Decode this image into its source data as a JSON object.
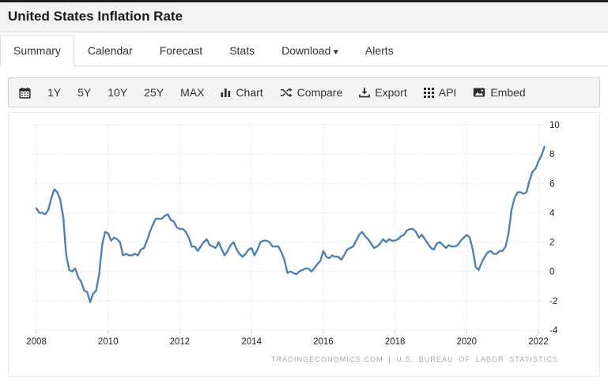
{
  "page": {
    "title": "United States Inflation Rate"
  },
  "tabs": {
    "items": [
      {
        "label": "Summary",
        "active": true
      },
      {
        "label": "Calendar",
        "active": false
      },
      {
        "label": "Forecast",
        "active": false
      },
      {
        "label": "Stats",
        "active": false
      },
      {
        "label": "Download",
        "active": false,
        "has_caret": true
      },
      {
        "label": "Alerts",
        "active": false
      }
    ]
  },
  "icons": {
    "caret_down": "▾"
  },
  "toolbar": {
    "ranges": [
      {
        "label": "1Y"
      },
      {
        "label": "5Y"
      },
      {
        "label": "10Y"
      },
      {
        "label": "25Y"
      },
      {
        "label": "MAX"
      }
    ],
    "actions": [
      {
        "label": "Chart"
      },
      {
        "label": "Compare"
      },
      {
        "label": "Export"
      },
      {
        "label": "API"
      },
      {
        "label": "Embed"
      }
    ]
  },
  "chart_data": {
    "type": "line",
    "title": "United States Inflation Rate",
    "x_start": 2008,
    "x_step_months": 1,
    "x_ticks": [
      2008,
      2010,
      2012,
      2014,
      2016,
      2018,
      2020,
      2022
    ],
    "y_ticks": [
      10,
      8,
      6,
      4,
      2,
      0,
      -2,
      -4
    ],
    "ylim": [
      -4,
      10
    ],
    "grid": "dotted",
    "legend": "none",
    "line_color": "#4e82b4",
    "values": [
      4.3,
      4.0,
      4.0,
      3.9,
      4.2,
      5.0,
      5.6,
      5.4,
      4.9,
      3.7,
      1.1,
      0.1,
      0.0,
      0.2,
      -0.4,
      -0.7,
      -1.3,
      -1.4,
      -2.1,
      -1.5,
      -1.3,
      -0.2,
      1.8,
      2.7,
      2.6,
      2.1,
      2.3,
      2.2,
      2.0,
      1.1,
      1.2,
      1.1,
      1.1,
      1.2,
      1.1,
      1.5,
      1.6,
      2.1,
      2.7,
      3.2,
      3.6,
      3.6,
      3.6,
      3.8,
      3.9,
      3.5,
      3.4,
      3.0,
      2.9,
      2.9,
      2.7,
      2.3,
      1.7,
      1.7,
      1.4,
      1.7,
      2.0,
      2.2,
      1.8,
      1.7,
      1.6,
      2.0,
      1.5,
      1.1,
      1.4,
      1.8,
      2.0,
      1.5,
      1.2,
      1.0,
      1.2,
      1.5,
      1.6,
      1.1,
      1.5,
      2.0,
      2.1,
      2.1,
      2.0,
      1.7,
      1.7,
      1.7,
      1.3,
      0.8,
      -0.1,
      0.0,
      -0.1,
      -0.2,
      0.0,
      0.1,
      0.2,
      0.2,
      0.0,
      0.2,
      0.5,
      0.7,
      1.4,
      1.0,
      0.9,
      1.1,
      1.0,
      1.0,
      0.8,
      1.1,
      1.5,
      1.6,
      1.7,
      2.1,
      2.5,
      2.7,
      2.4,
      2.2,
      1.9,
      1.6,
      1.7,
      1.9,
      2.2,
      2.0,
      2.2,
      2.1,
      2.1,
      2.2,
      2.4,
      2.5,
      2.8,
      2.9,
      2.9,
      2.7,
      2.3,
      2.5,
      2.2,
      1.9,
      1.6,
      1.5,
      1.9,
      2.0,
      1.8,
      1.6,
      1.8,
      1.7,
      1.7,
      1.8,
      2.1,
      2.3,
      2.5,
      2.3,
      1.5,
      0.3,
      0.1,
      0.6,
      1.0,
      1.3,
      1.4,
      1.2,
      1.2,
      1.4,
      1.4,
      1.7,
      2.6,
      4.2,
      5.0,
      5.4,
      5.4,
      5.3,
      5.4,
      6.2,
      6.8,
      7.0,
      7.5,
      7.9,
      8.5
    ]
  },
  "footer": {
    "attribution": "TRADINGECONOMICS.COM | U.S. BUREAU OF LABOR STATISTICS"
  }
}
